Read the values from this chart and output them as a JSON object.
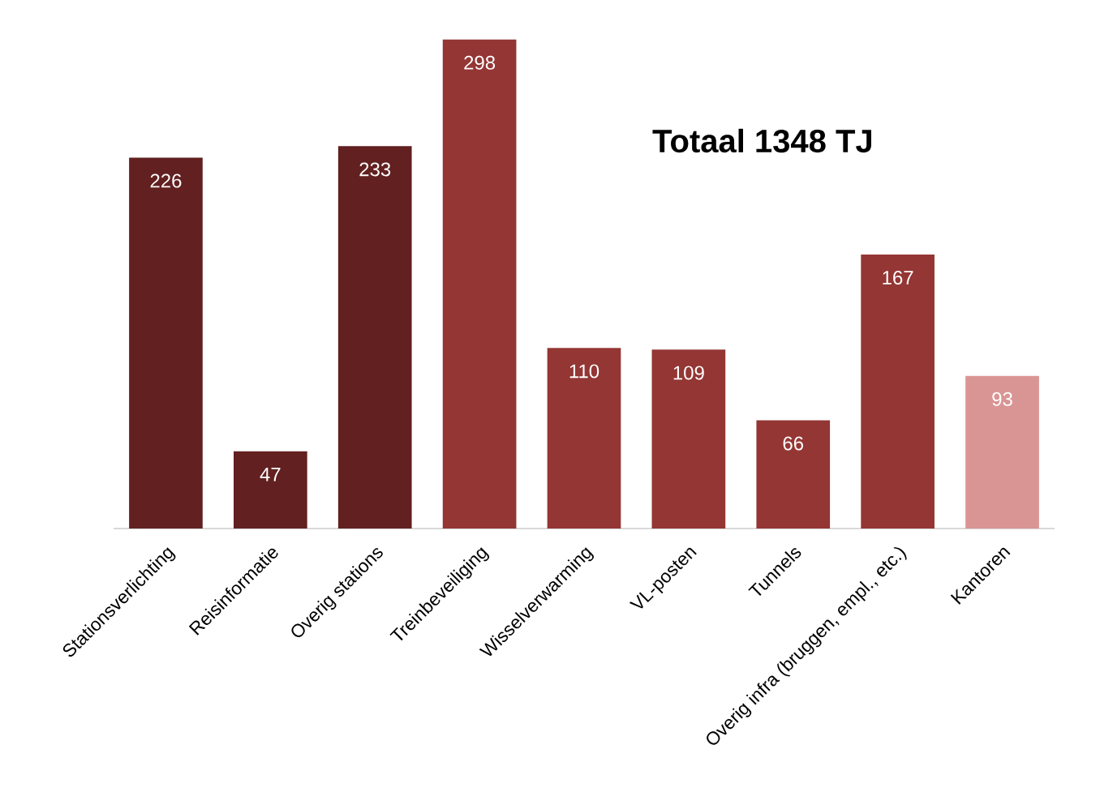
{
  "chart_data": {
    "type": "bar",
    "title": "Totaal 1348 TJ",
    "categories": [
      "Stationsverlichting",
      "Reisinformatie",
      "Overig stations",
      "Treinbeveiliging",
      "Wisselverwarming",
      "VL-posten",
      "Tunnels",
      "Overig infra (bruggen, empl., etc.)",
      "Kantoren"
    ],
    "values": [
      226,
      47,
      233,
      298,
      110,
      109,
      66,
      167,
      93
    ],
    "colors": [
      "#622020",
      "#622020",
      "#622020",
      "#943634",
      "#943634",
      "#943634",
      "#943634",
      "#943634",
      "#d99594"
    ],
    "data_labels": true
  }
}
